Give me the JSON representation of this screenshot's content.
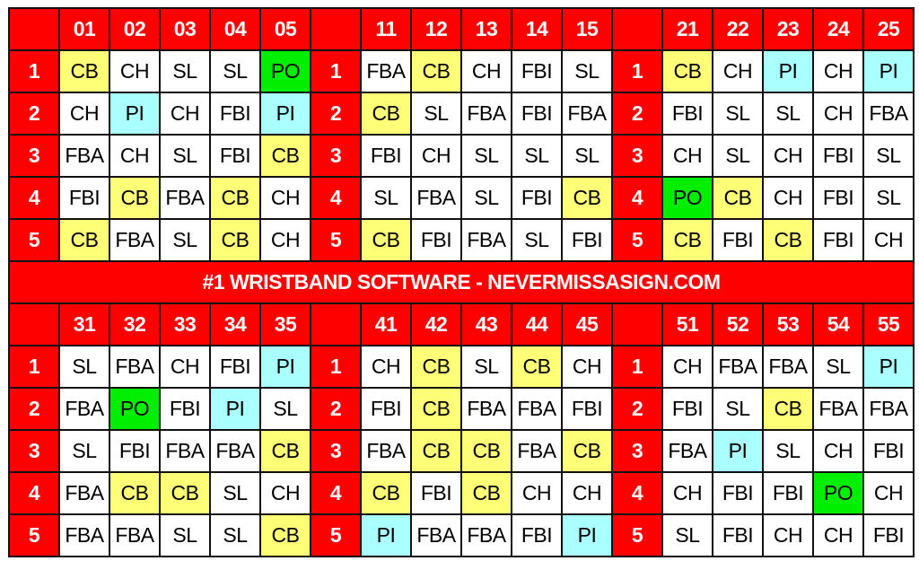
{
  "banner": "#1 WRISTBAND SOFTWARE - NEVERMISSASIGN.COM",
  "colors": {
    "header": "#ff0000",
    "CB": "#ffff77",
    "PI": "#aaffff",
    "PO": "#00ee00",
    "default": "#ffffff"
  },
  "top_blocks": [
    {
      "columns": [
        "01",
        "02",
        "03",
        "04",
        "05"
      ],
      "rows": [
        {
          "label": "1",
          "cells": [
            "CB",
            "CH",
            "SL",
            "SL",
            "PO"
          ]
        },
        {
          "label": "2",
          "cells": [
            "CH",
            "PI",
            "CH",
            "FBI",
            "PI"
          ]
        },
        {
          "label": "3",
          "cells": [
            "FBA",
            "CH",
            "SL",
            "FBI",
            "CB"
          ]
        },
        {
          "label": "4",
          "cells": [
            "FBI",
            "CB",
            "FBA",
            "CB",
            "CH"
          ]
        },
        {
          "label": "5",
          "cells": [
            "CB",
            "FBA",
            "SL",
            "CB",
            "CH"
          ]
        }
      ]
    },
    {
      "columns": [
        "11",
        "12",
        "13",
        "14",
        "15"
      ],
      "rows": [
        {
          "label": "1",
          "cells": [
            "FBA",
            "CB",
            "CH",
            "FBI",
            "SL"
          ]
        },
        {
          "label": "2",
          "cells": [
            "CB",
            "SL",
            "FBA",
            "FBI",
            "FBA"
          ]
        },
        {
          "label": "3",
          "cells": [
            "FBI",
            "CH",
            "SL",
            "SL",
            "SL"
          ]
        },
        {
          "label": "4",
          "cells": [
            "SL",
            "FBA",
            "SL",
            "FBI",
            "CB"
          ]
        },
        {
          "label": "5",
          "cells": [
            "CB",
            "FBI",
            "FBA",
            "SL",
            "FBI"
          ]
        }
      ]
    },
    {
      "columns": [
        "21",
        "22",
        "23",
        "24",
        "25"
      ],
      "rows": [
        {
          "label": "1",
          "cells": [
            "CB",
            "CH",
            "PI",
            "CH",
            "PI"
          ]
        },
        {
          "label": "2",
          "cells": [
            "FBI",
            "SL",
            "SL",
            "CH",
            "FBA"
          ]
        },
        {
          "label": "3",
          "cells": [
            "CH",
            "SL",
            "CH",
            "FBI",
            "SL"
          ]
        },
        {
          "label": "4",
          "cells": [
            "PO",
            "CB",
            "CH",
            "FBI",
            "SL"
          ]
        },
        {
          "label": "5",
          "cells": [
            "CB",
            "FBI",
            "CB",
            "FBI",
            "CH"
          ]
        }
      ]
    }
  ],
  "bottom_blocks": [
    {
      "columns": [
        "31",
        "32",
        "33",
        "34",
        "35"
      ],
      "rows": [
        {
          "label": "1",
          "cells": [
            "SL",
            "FBA",
            "CH",
            "FBI",
            "PI"
          ]
        },
        {
          "label": "2",
          "cells": [
            "FBA",
            "PO",
            "FBI",
            "PI",
            "SL"
          ]
        },
        {
          "label": "3",
          "cells": [
            "SL",
            "FBI",
            "FBA",
            "FBA",
            "CB"
          ]
        },
        {
          "label": "4",
          "cells": [
            "FBA",
            "CB",
            "CB",
            "SL",
            "CH"
          ]
        },
        {
          "label": "5",
          "cells": [
            "FBA",
            "FBA",
            "SL",
            "SL",
            "CB"
          ]
        }
      ]
    },
    {
      "columns": [
        "41",
        "42",
        "43",
        "44",
        "45"
      ],
      "rows": [
        {
          "label": "1",
          "cells": [
            "CH",
            "CB",
            "SL",
            "CB",
            "CH"
          ]
        },
        {
          "label": "2",
          "cells": [
            "FBI",
            "CB",
            "FBA",
            "FBA",
            "FBI"
          ]
        },
        {
          "label": "3",
          "cells": [
            "FBA",
            "CB",
            "CB",
            "FBA",
            "CB"
          ]
        },
        {
          "label": "4",
          "cells": [
            "CB",
            "FBI",
            "CB",
            "CH",
            "CH"
          ]
        },
        {
          "label": "5",
          "cells": [
            "PI",
            "FBA",
            "FBA",
            "FBI",
            "PI"
          ]
        }
      ]
    },
    {
      "columns": [
        "51",
        "52",
        "53",
        "54",
        "55"
      ],
      "rows": [
        {
          "label": "1",
          "cells": [
            "CH",
            "FBA",
            "FBA",
            "SL",
            "PI"
          ]
        },
        {
          "label": "2",
          "cells": [
            "FBI",
            "SL",
            "CB",
            "FBA",
            "FBA"
          ]
        },
        {
          "label": "3",
          "cells": [
            "FBA",
            "PI",
            "SL",
            "CH",
            "FBI"
          ]
        },
        {
          "label": "4",
          "cells": [
            "CH",
            "FBI",
            "FBI",
            "PO",
            "CH"
          ]
        },
        {
          "label": "5",
          "cells": [
            "SL",
            "FBI",
            "CH",
            "CH",
            "FBI"
          ]
        }
      ]
    }
  ]
}
